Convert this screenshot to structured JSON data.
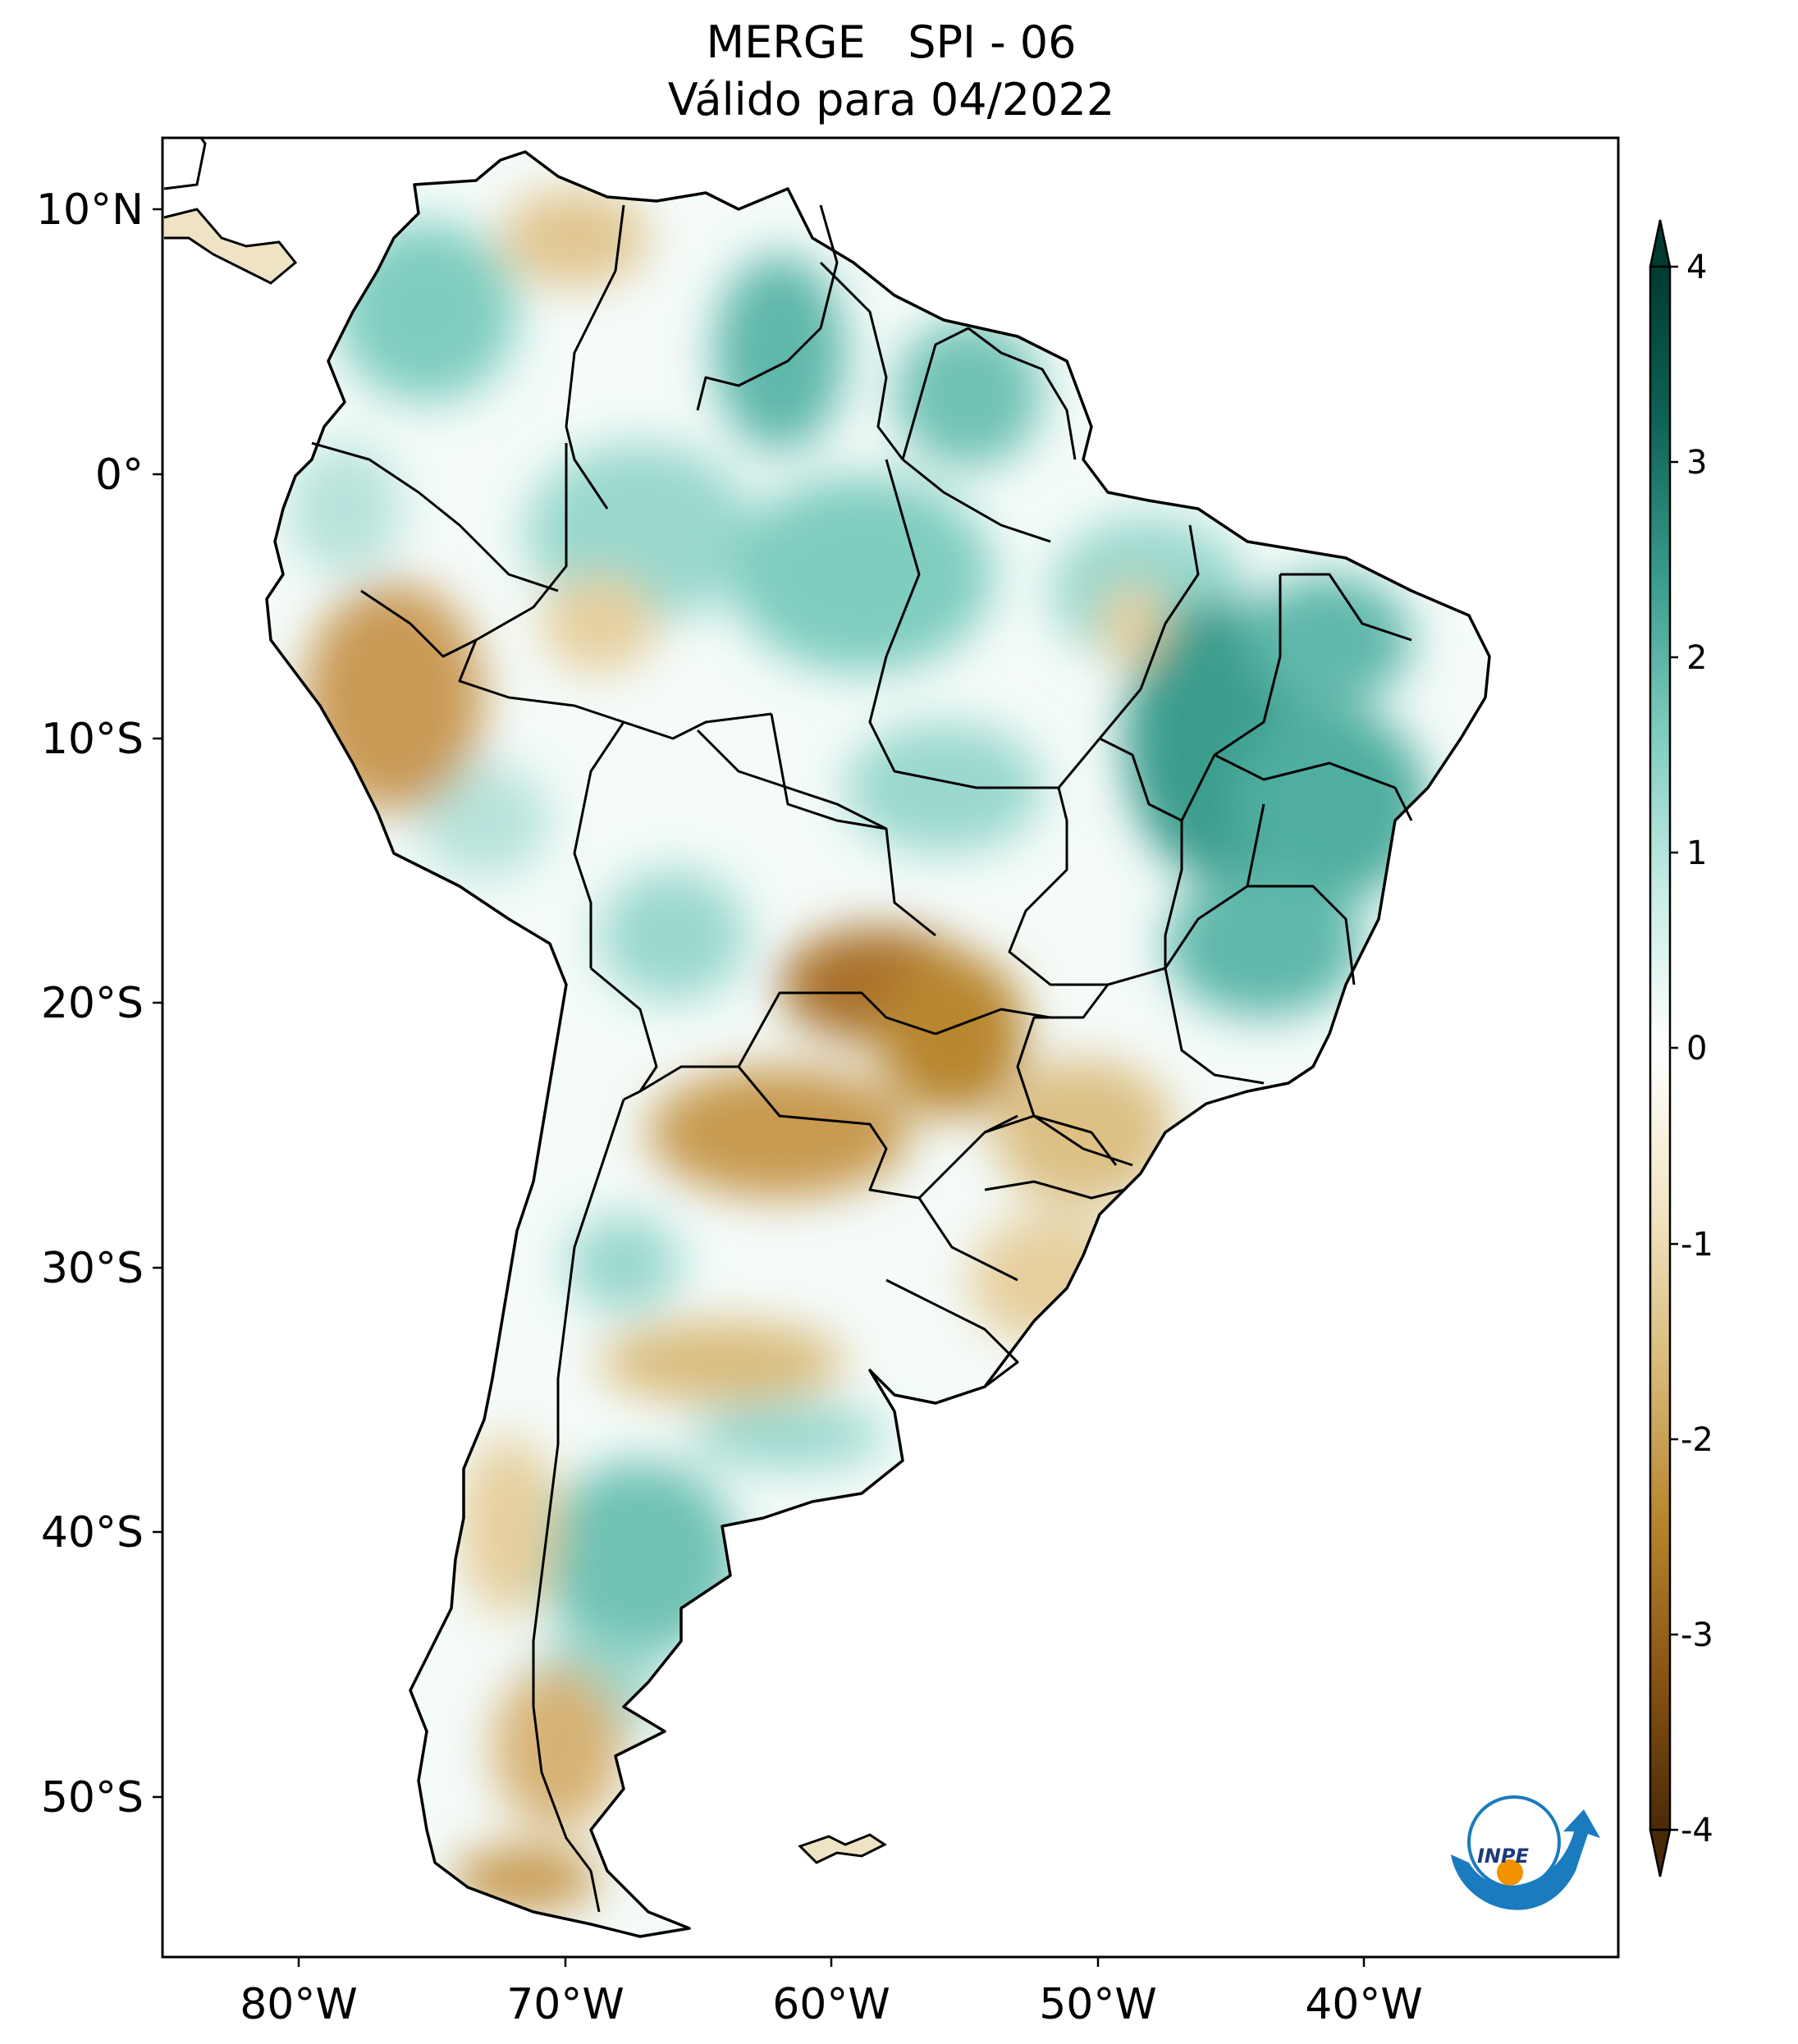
{
  "title": {
    "line1": "MERGE   SPI - 06",
    "line2": "Válido para 04/2022"
  },
  "axes": {
    "lat_ticks": [
      "10°N",
      "0°",
      "10°S",
      "20°S",
      "30°S",
      "40°S",
      "50°S"
    ],
    "lon_ticks": [
      "80°W",
      "70°W",
      "60°W",
      "50°W",
      "40°W"
    ]
  },
  "colorbar": {
    "ticks": [
      "4",
      "3",
      "2",
      "1",
      "0",
      "-1",
      "-2",
      "-3",
      "-4"
    ],
    "range": [
      -4,
      4
    ],
    "extend": "both",
    "palette": [
      "#4a2a06",
      "#8a5513",
      "#b8862f",
      "#d9bc7b",
      "#f3e6c6",
      "#ffffff",
      "#c8ece6",
      "#7fcdbf",
      "#3a9c8d",
      "#0e6457",
      "#003b30"
    ]
  },
  "map": {
    "region": "South America",
    "colors": {
      "wet": "#6fc2b4",
      "wet_strong": "#2f8f80",
      "dry": "#d7b274",
      "dry_strong": "#a9712a",
      "neutral": "#ffffff",
      "border": "#000000"
    }
  },
  "logo": {
    "text": "INPE",
    "icon": "inpe-logo-icon"
  }
}
